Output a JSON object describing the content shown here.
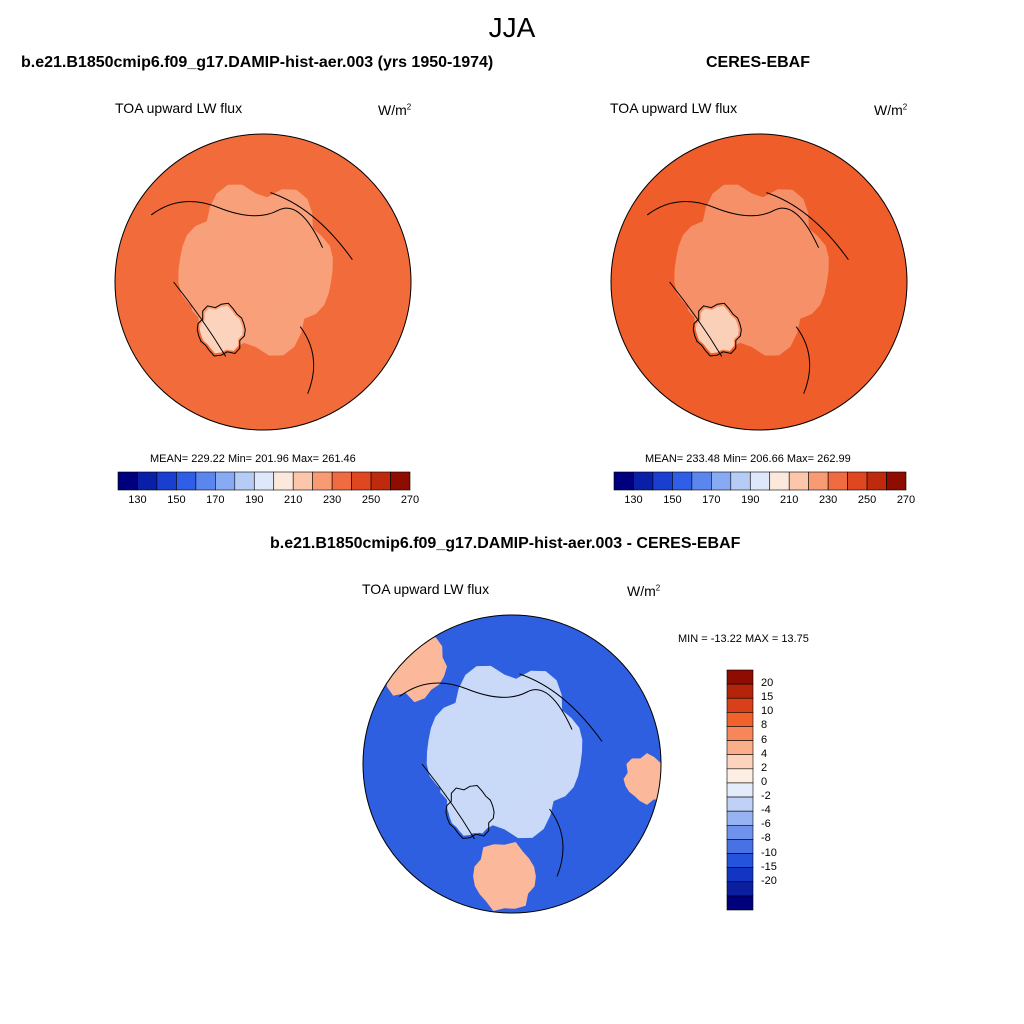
{
  "title": "JJA",
  "panel_left": {
    "title": "b.e21.B1850cmip6.f09_g17.DAMIP-hist-aer.003 (yrs 1950-1974)",
    "variable": "TOA upward LW flux",
    "units_base": "W/m",
    "units_exp": "2",
    "stats": "MEAN= 229.22  Min= 201.96  Max= 261.46"
  },
  "panel_right": {
    "title": "CERES-EBAF",
    "variable": "TOA upward LW flux",
    "units_base": "W/m",
    "units_exp": "2",
    "stats": "MEAN= 233.48  Min= 206.66  Max= 262.99"
  },
  "panel_diff": {
    "title": "b.e21.B1850cmip6.f09_g17.DAMIP-hist-aer.003 - CERES-EBAF",
    "variable": "TOA upward LW flux",
    "units_base": "W/m",
    "units_exp": "2",
    "stats": "MIN = -13.22 MAX =  13.75"
  },
  "abs_colorbar": {
    "colors": [
      "#00007f",
      "#0a1fa8",
      "#1a3fd0",
      "#2f5fe6",
      "#5a86ee",
      "#88aaf2",
      "#b6ccf6",
      "#dde8fb",
      "#fde8dc",
      "#fcc6ab",
      "#f89b74",
      "#f06b3f",
      "#e04620",
      "#c02a0c",
      "#8f0c00"
    ],
    "tick_labels": [
      "130",
      "150",
      "170",
      "190",
      "210",
      "230",
      "250",
      "270"
    ]
  },
  "diff_colorbar": {
    "colors_top_to_bottom": [
      "#8f0c00",
      "#b4240a",
      "#d8401a",
      "#f0612c",
      "#f7875a",
      "#fbae8a",
      "#fdd3bd",
      "#fdeee4",
      "#e4ecfb",
      "#bfd1f7",
      "#98b3f2",
      "#6f93ec",
      "#4871e4",
      "#2553db",
      "#1235c4",
      "#0a1e9e",
      "#00007a"
    ],
    "tick_labels": [
      "20",
      "15",
      "10",
      "8",
      "6",
      "4",
      "2",
      "0",
      "-2",
      "-4",
      "-6",
      "-8",
      "-10",
      "-15",
      "-20"
    ]
  },
  "colors": {
    "left_base": "#f26b3a",
    "left_mid": "#f8a07a",
    "left_greenland": "#fcd3bd",
    "right_base": "#ee5d2a",
    "right_mid": "#f59068",
    "right_greenland": "#fbd0b8",
    "diff_base": "#2d5fe0",
    "diff_light": "#c9d9f7",
    "diff_warm": "#fbb89a"
  }
}
